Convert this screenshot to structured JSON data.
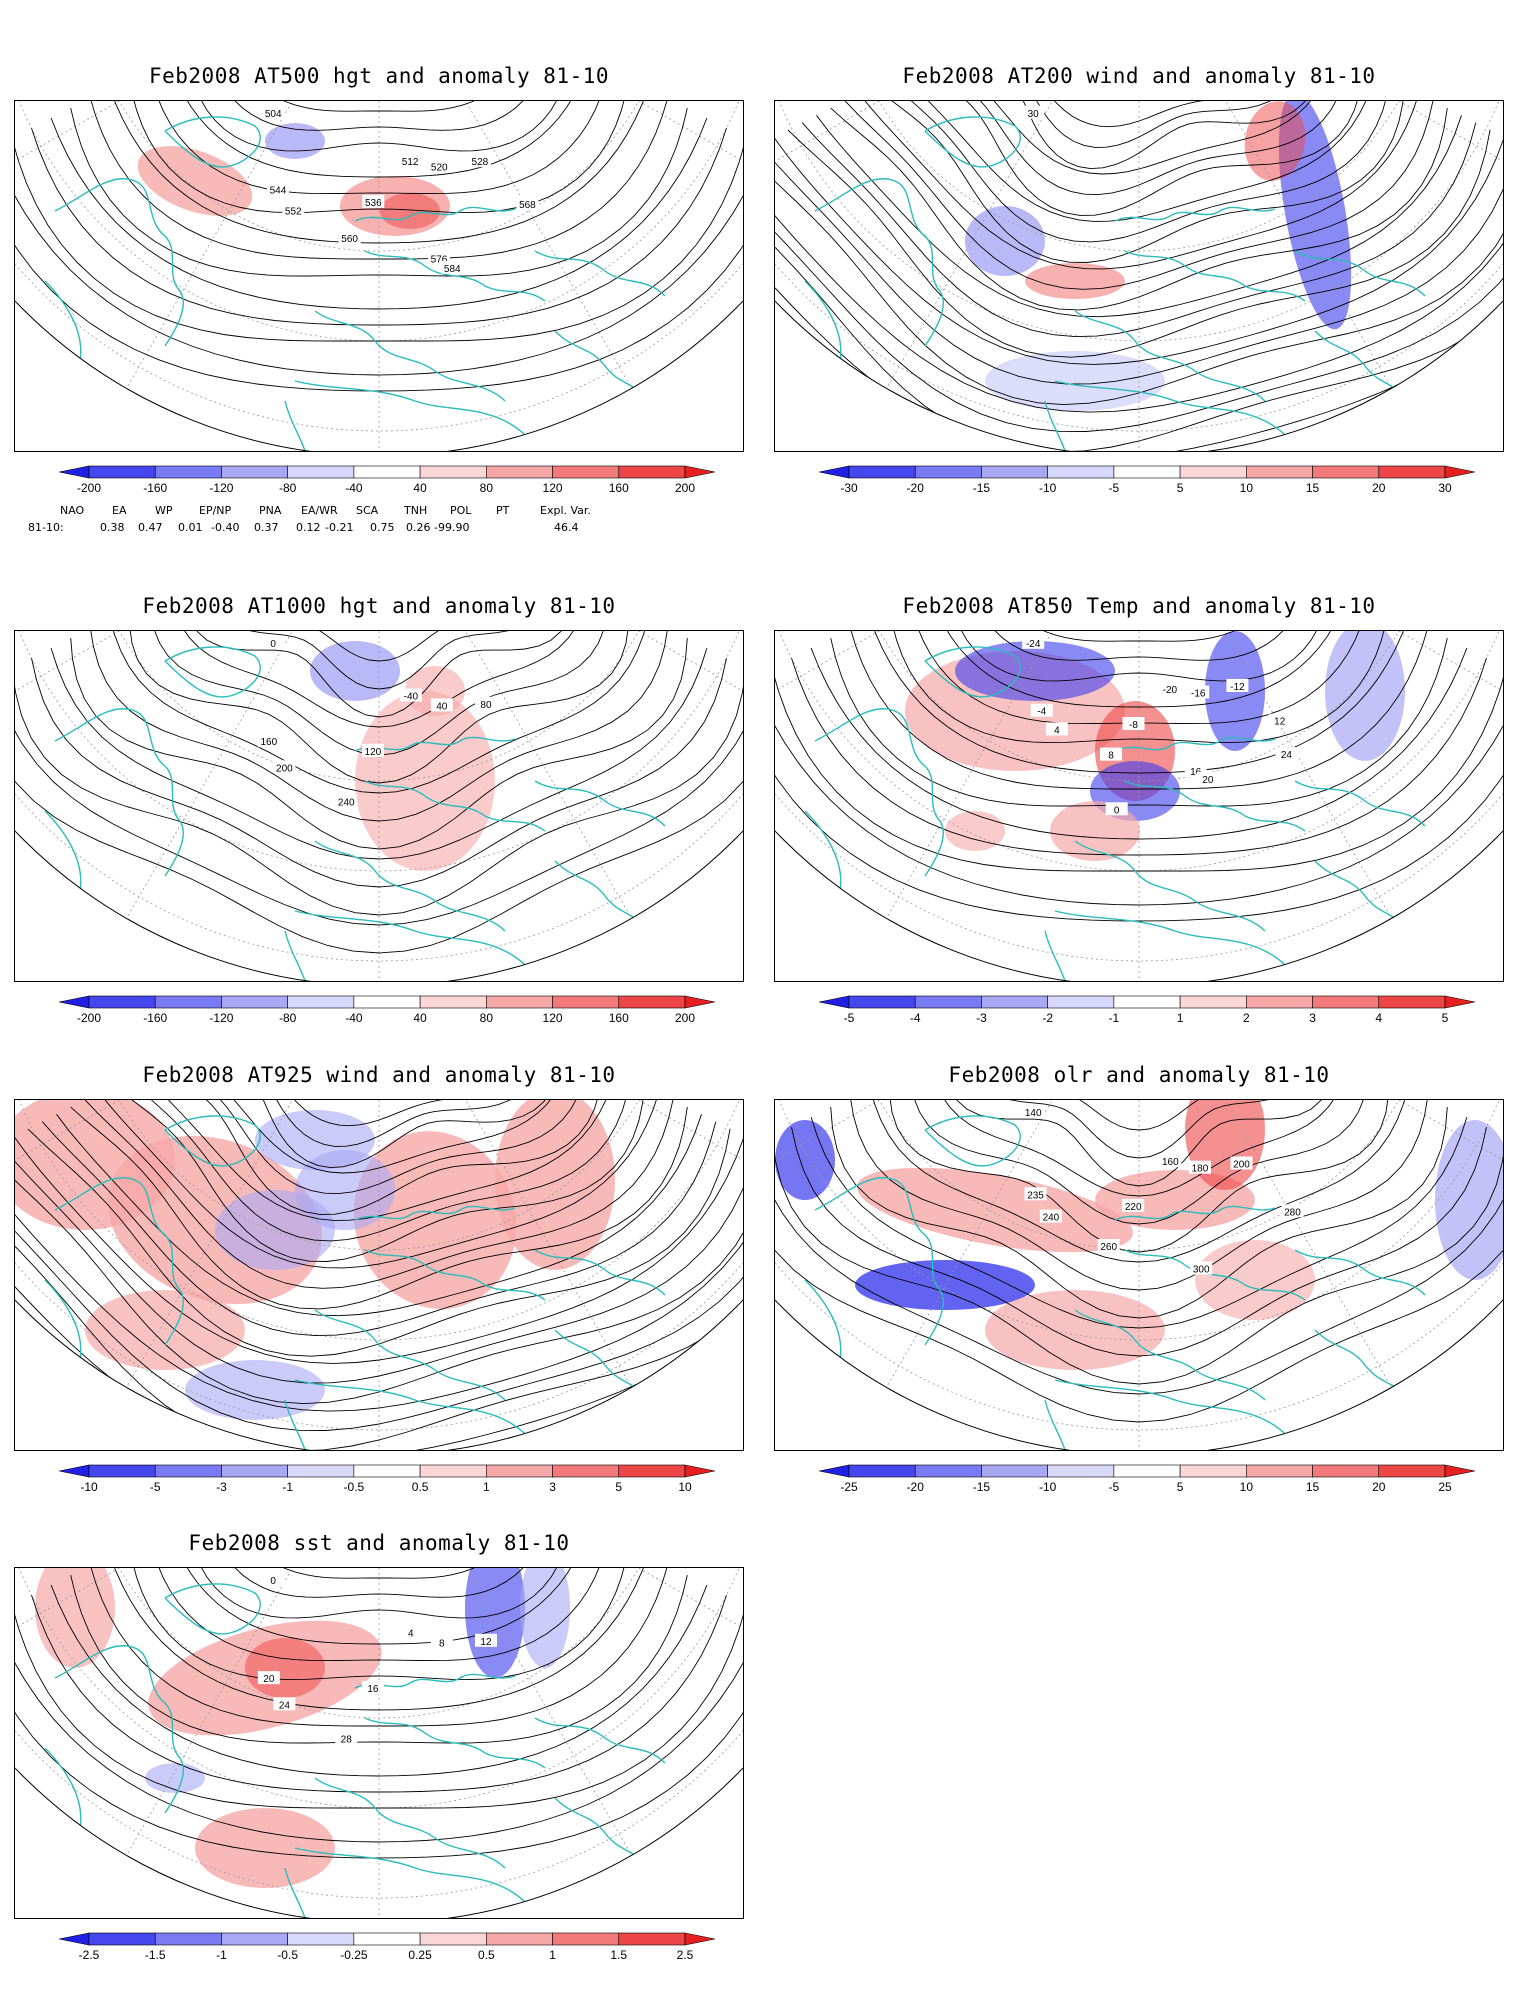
{
  "panels": [
    {
      "id": "z500",
      "title": "Feb2008 AT500 hgt and anomaly 81-10",
      "colorbar": {
        "labels": [
          "-200",
          "-160",
          "-120",
          "-80",
          "-40",
          "40",
          "80",
          "120",
          "160",
          "200"
        ],
        "colors": [
          "#1f1fe6",
          "#4646ee",
          "#7a7af2",
          "#a8a8f5",
          "#d8d8fa",
          "#ffffff",
          "#fbd6d6",
          "#f6a8a8",
          "#f27a7a",
          "#ee4646",
          "#e61f1f"
        ]
      },
      "contour_labels": [
        "504",
        "512",
        "520",
        "528",
        "536",
        "544",
        "552",
        "560",
        "568",
        "576",
        "584"
      ],
      "anomaly_regions": [
        {
          "sign": "positive",
          "region": "central North Atlantic"
        },
        {
          "sign": "positive",
          "region": "western Europe"
        },
        {
          "sign": "negative",
          "region": "Greenland"
        }
      ],
      "indices": {
        "headers": [
          "NAO",
          "EA",
          "WP",
          "EP/NP",
          "PNA",
          "EA/WR",
          "SCA",
          "TNH",
          "POL",
          "PT",
          "Expl. Var."
        ],
        "row_label": "81-10:",
        "values": [
          "0.38",
          "0.47",
          "0.01",
          "-0.40",
          "0.37",
          "0.12",
          "-0.21",
          "0.75",
          "0.26",
          "-99.90",
          "46.4"
        ]
      }
    },
    {
      "id": "u200",
      "title": "Feb2008 AT200 wind and anomaly 81-10",
      "colorbar": {
        "labels": [
          "-30",
          "-20",
          "-15",
          "-10",
          "-5",
          "5",
          "10",
          "15",
          "20",
          "30"
        ],
        "colors": [
          "#1f1fe6",
          "#4646ee",
          "#7a7af2",
          "#a8a8f5",
          "#d8d8fa",
          "#ffffff",
          "#fbd6d6",
          "#f6a8a8",
          "#f27a7a",
          "#ee4646",
          "#e61f1f"
        ]
      },
      "contour_labels": [
        "30"
      ],
      "anomaly_regions": [
        {
          "sign": "negative",
          "region": "western Asia"
        },
        {
          "sign": "positive",
          "region": "northern Africa"
        },
        {
          "sign": "negative",
          "region": "North Atlantic"
        },
        {
          "sign": "positive",
          "region": "northern Europe"
        }
      ]
    },
    {
      "id": "z1000",
      "title": "Feb2008 AT1000 hgt and anomaly 81-10",
      "colorbar": {
        "labels": [
          "-200",
          "-160",
          "-120",
          "-80",
          "-40",
          "40",
          "80",
          "120",
          "160",
          "200"
        ],
        "colors": [
          "#1f1fe6",
          "#4646ee",
          "#7a7af2",
          "#a8a8f5",
          "#d8d8fa",
          "#ffffff",
          "#fbd6d6",
          "#f6a8a8",
          "#f27a7a",
          "#ee4646",
          "#e61f1f"
        ]
      },
      "contour_labels": [
        "0",
        "-40",
        "40",
        "80",
        "120",
        "160",
        "200",
        "240"
      ],
      "anomaly_regions": [
        {
          "sign": "negative",
          "region": "Greenland"
        },
        {
          "sign": "positive",
          "region": "central Europe"
        }
      ]
    },
    {
      "id": "t850",
      "title": "Feb2008 AT850 Temp and anomaly 81-10",
      "colorbar": {
        "labels": [
          "-5",
          "-4",
          "-3",
          "-2",
          "-1",
          "1",
          "2",
          "3",
          "4",
          "5"
        ],
        "colors": [
          "#1f1fe6",
          "#4646ee",
          "#7a7af2",
          "#a8a8f5",
          "#d8d8fa",
          "#ffffff",
          "#fbd6d6",
          "#f6a8a8",
          "#f27a7a",
          "#ee4646",
          "#e61f1f"
        ]
      },
      "contour_labels": [
        "-24",
        "-20",
        "-16",
        "-12",
        "-8",
        "-4",
        "4",
        "8",
        "12",
        "16",
        "20",
        "24",
        "0"
      ],
      "anomaly_regions": [
        {
          "sign": "negative",
          "region": "Canadian Arctic"
        },
        {
          "sign": "positive",
          "region": "Greenland"
        },
        {
          "sign": "positive",
          "region": "Scandinavia"
        },
        {
          "sign": "negative",
          "region": "Middle East"
        },
        {
          "sign": "negative",
          "region": "eastern Siberia"
        },
        {
          "sign": "positive",
          "region": "North Atlantic"
        }
      ]
    },
    {
      "id": "u925",
      "title": "Feb2008 AT925 wind and anomaly 81-10",
      "colorbar": {
        "labels": [
          "-10",
          "-5",
          "-3",
          "-1",
          "-0.5",
          "0.5",
          "1",
          "3",
          "5",
          "10"
        ],
        "colors": [
          "#1f1fe6",
          "#4646ee",
          "#7a7af2",
          "#a8a8f5",
          "#d8d8fa",
          "#ffffff",
          "#fbd6d6",
          "#f6a8a8",
          "#f27a7a",
          "#ee4646",
          "#e61f1f"
        ]
      },
      "anomaly_regions": [
        {
          "sign": "positive",
          "region": "western Atlantic"
        },
        {
          "sign": "negative",
          "region": "central Atlantic"
        },
        {
          "sign": "positive",
          "region": "Europe"
        },
        {
          "sign": "positive",
          "region": "western Asia"
        }
      ]
    },
    {
      "id": "olr",
      "title": "Feb2008 olr and anomaly 81-10",
      "colorbar": {
        "labels": [
          "-25",
          "-20",
          "-15",
          "-10",
          "-5",
          "5",
          "10",
          "15",
          "20",
          "25"
        ],
        "colors": [
          "#1f1fe6",
          "#4646ee",
          "#7a7af2",
          "#a8a8f5",
          "#d8d8fa",
          "#ffffff",
          "#fbd6d6",
          "#f6a8a8",
          "#f27a7a",
          "#ee4646",
          "#e61f1f"
        ]
      },
      "contour_labels": [
        "140",
        "160",
        "180",
        "200",
        "220",
        "235",
        "240",
        "260",
        "280",
        "300"
      ],
      "anomaly_regions": [
        {
          "sign": "negative",
          "region": "eastern Pacific ITCZ"
        },
        {
          "sign": "positive",
          "region": "North Atlantic"
        },
        {
          "sign": "positive",
          "region": "Siberia"
        },
        {
          "sign": "negative",
          "region": "western Pacific"
        }
      ]
    },
    {
      "id": "sst",
      "title": "Feb2008 sst and anomaly 81-10",
      "colorbar": {
        "labels": [
          "-2.5",
          "-1.5",
          "-1",
          "-0.5",
          "-0.25",
          "0.25",
          "0.5",
          "1",
          "1.5",
          "2.5"
        ],
        "colors": [
          "#1f1fe6",
          "#4646ee",
          "#7a7af2",
          "#a8a8f5",
          "#d8d8fa",
          "#ffffff",
          "#fbd6d6",
          "#f6a8a8",
          "#f27a7a",
          "#ee4646",
          "#e61f1f"
        ]
      },
      "contour_labels": [
        "0",
        "4",
        "8",
        "12",
        "16",
        "20",
        "24",
        "28"
      ],
      "anomaly_regions": [
        {
          "sign": "positive",
          "region": "western Atlantic"
        },
        {
          "sign": "positive",
          "region": "North Atlantic"
        },
        {
          "sign": "negative",
          "region": "western Pacific"
        },
        {
          "sign": "positive",
          "region": "tropical Atlantic"
        }
      ]
    }
  ]
}
